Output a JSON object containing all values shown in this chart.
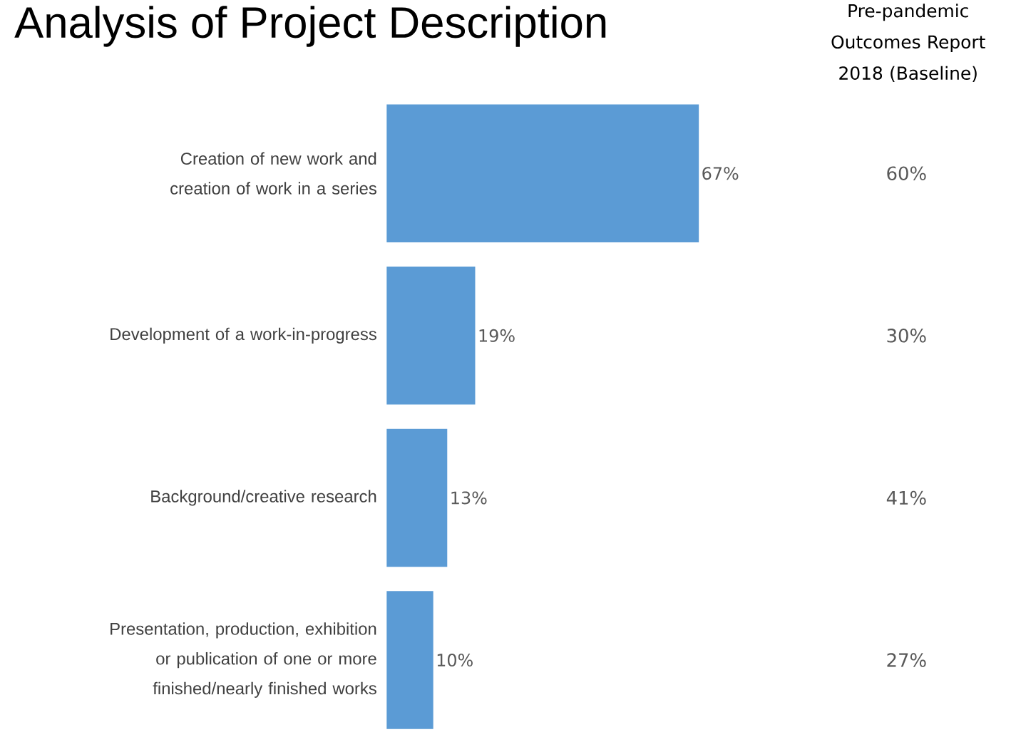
{
  "chart_data": {
    "type": "bar",
    "orientation": "horizontal",
    "title": "Analysis of Project Description",
    "categories": [
      "Creation of new work and creation of work in a series",
      "Development of a work-in-progress",
      "Background/creative research",
      "Presentation, production, exhibition or publication of one or more finished/nearly finished works"
    ],
    "values": [
      67,
      19,
      13,
      10
    ],
    "color": "#5b9bd5",
    "value_labels": [
      "67%",
      "19%",
      "13%",
      "10%"
    ],
    "annotations": [
      "Pre-pandemic Outcomes Report 2018 (Baseline)",
      "60%",
      "30%",
      "41%",
      "27%"
    ]
  }
}
